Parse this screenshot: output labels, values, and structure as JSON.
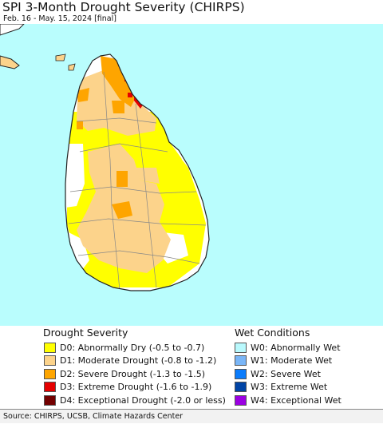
{
  "header": {
    "title": "SPI 3-Month Drought Severity (CHIRPS)",
    "subtitle": "Feb. 16 - May. 15, 2024 [final]"
  },
  "map": {
    "ocean_color": "#b9fdfd",
    "land_color": "#ffffff",
    "border_color": "#888888",
    "coast_color": "#222222"
  },
  "legend": {
    "drought": {
      "heading": "Drought Severity",
      "items": [
        {
          "label": "D0: Abnormally Dry (-0.5 to -0.7)",
          "color": "#ffff00"
        },
        {
          "label": "D1: Moderate Drought (-0.8 to -1.2)",
          "color": "#fcd38b"
        },
        {
          "label": "D2: Severe Drought (-1.3 to -1.5)",
          "color": "#fea500"
        },
        {
          "label": "D3: Extreme Drought (-1.6 to -1.9)",
          "color": "#e50000"
        },
        {
          "label": "D4: Exceptional Drought (-2.0 or less)",
          "color": "#730000"
        }
      ]
    },
    "wet": {
      "heading": "Wet Conditions",
      "items": [
        {
          "label": "W0: Abnormally Wet",
          "color": "#b9f9fd"
        },
        {
          "label": "W1: Moderate Wet",
          "color": "#7ab6f7"
        },
        {
          "label": "W2: Severe Wet",
          "color": "#0a7cfc"
        },
        {
          "label": "W3: Extreme Wet",
          "color": "#0044a5"
        },
        {
          "label": "W4: Exceptional Wet",
          "color": "#9b00e2"
        }
      ]
    }
  },
  "footer": {
    "source": "Source: CHIRPS, UCSB, Climate Hazards Center"
  }
}
